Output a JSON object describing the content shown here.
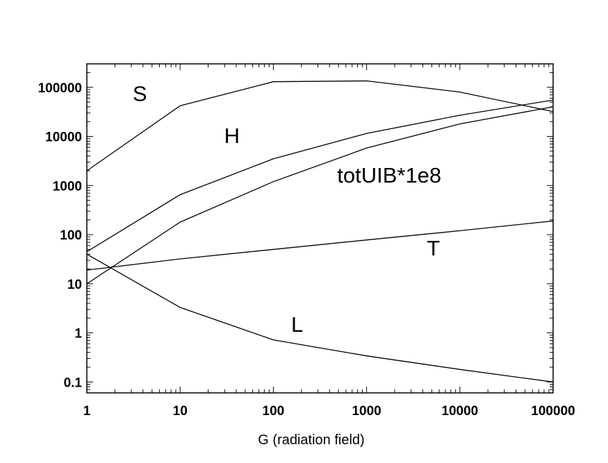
{
  "chart_data": {
    "type": "line",
    "title": "",
    "xlabel": "G (radiation field)",
    "ylabel": "",
    "x_scale": "log",
    "y_scale": "log",
    "xlim": [
      1,
      100000
    ],
    "ylim": [
      0.06,
      300000
    ],
    "grid": false,
    "legend": "none",
    "x_ticks": [
      "1",
      "10",
      "100",
      "1000",
      "10000",
      "100000"
    ],
    "y_ticks": [
      "100000",
      "10000",
      "1000",
      "100",
      "10",
      "1",
      "0.1"
    ],
    "x": [
      1,
      10,
      100,
      1000,
      10000,
      100000
    ],
    "series": [
      {
        "name": "S",
        "values": [
          2000,
          42000,
          130000,
          135000,
          80000,
          32000
        ]
      },
      {
        "name": "H",
        "values": [
          45,
          650,
          3500,
          11500,
          27000,
          55000
        ]
      },
      {
        "name": "totUIB*1e8",
        "values": [
          10,
          180,
          1200,
          5800,
          18000,
          40000
        ]
      },
      {
        "name": "T",
        "values": [
          19,
          32,
          50,
          78,
          120,
          190
        ]
      },
      {
        "name": "L",
        "values": [
          40,
          3.3,
          0.72,
          0.34,
          0.18,
          0.1
        ]
      }
    ],
    "series_labels": [
      {
        "text": "S",
        "x": 3.7,
        "y": 53000
      },
      {
        "text": "H",
        "x": 36,
        "y": 7300
      },
      {
        "text": "totUIB*1e8",
        "x": 1750,
        "y": 1150
      },
      {
        "text": "T",
        "x": 5200,
        "y": 38
      },
      {
        "text": "L",
        "x": 180,
        "y": 1.05
      }
    ],
    "line_color": "#000000"
  }
}
